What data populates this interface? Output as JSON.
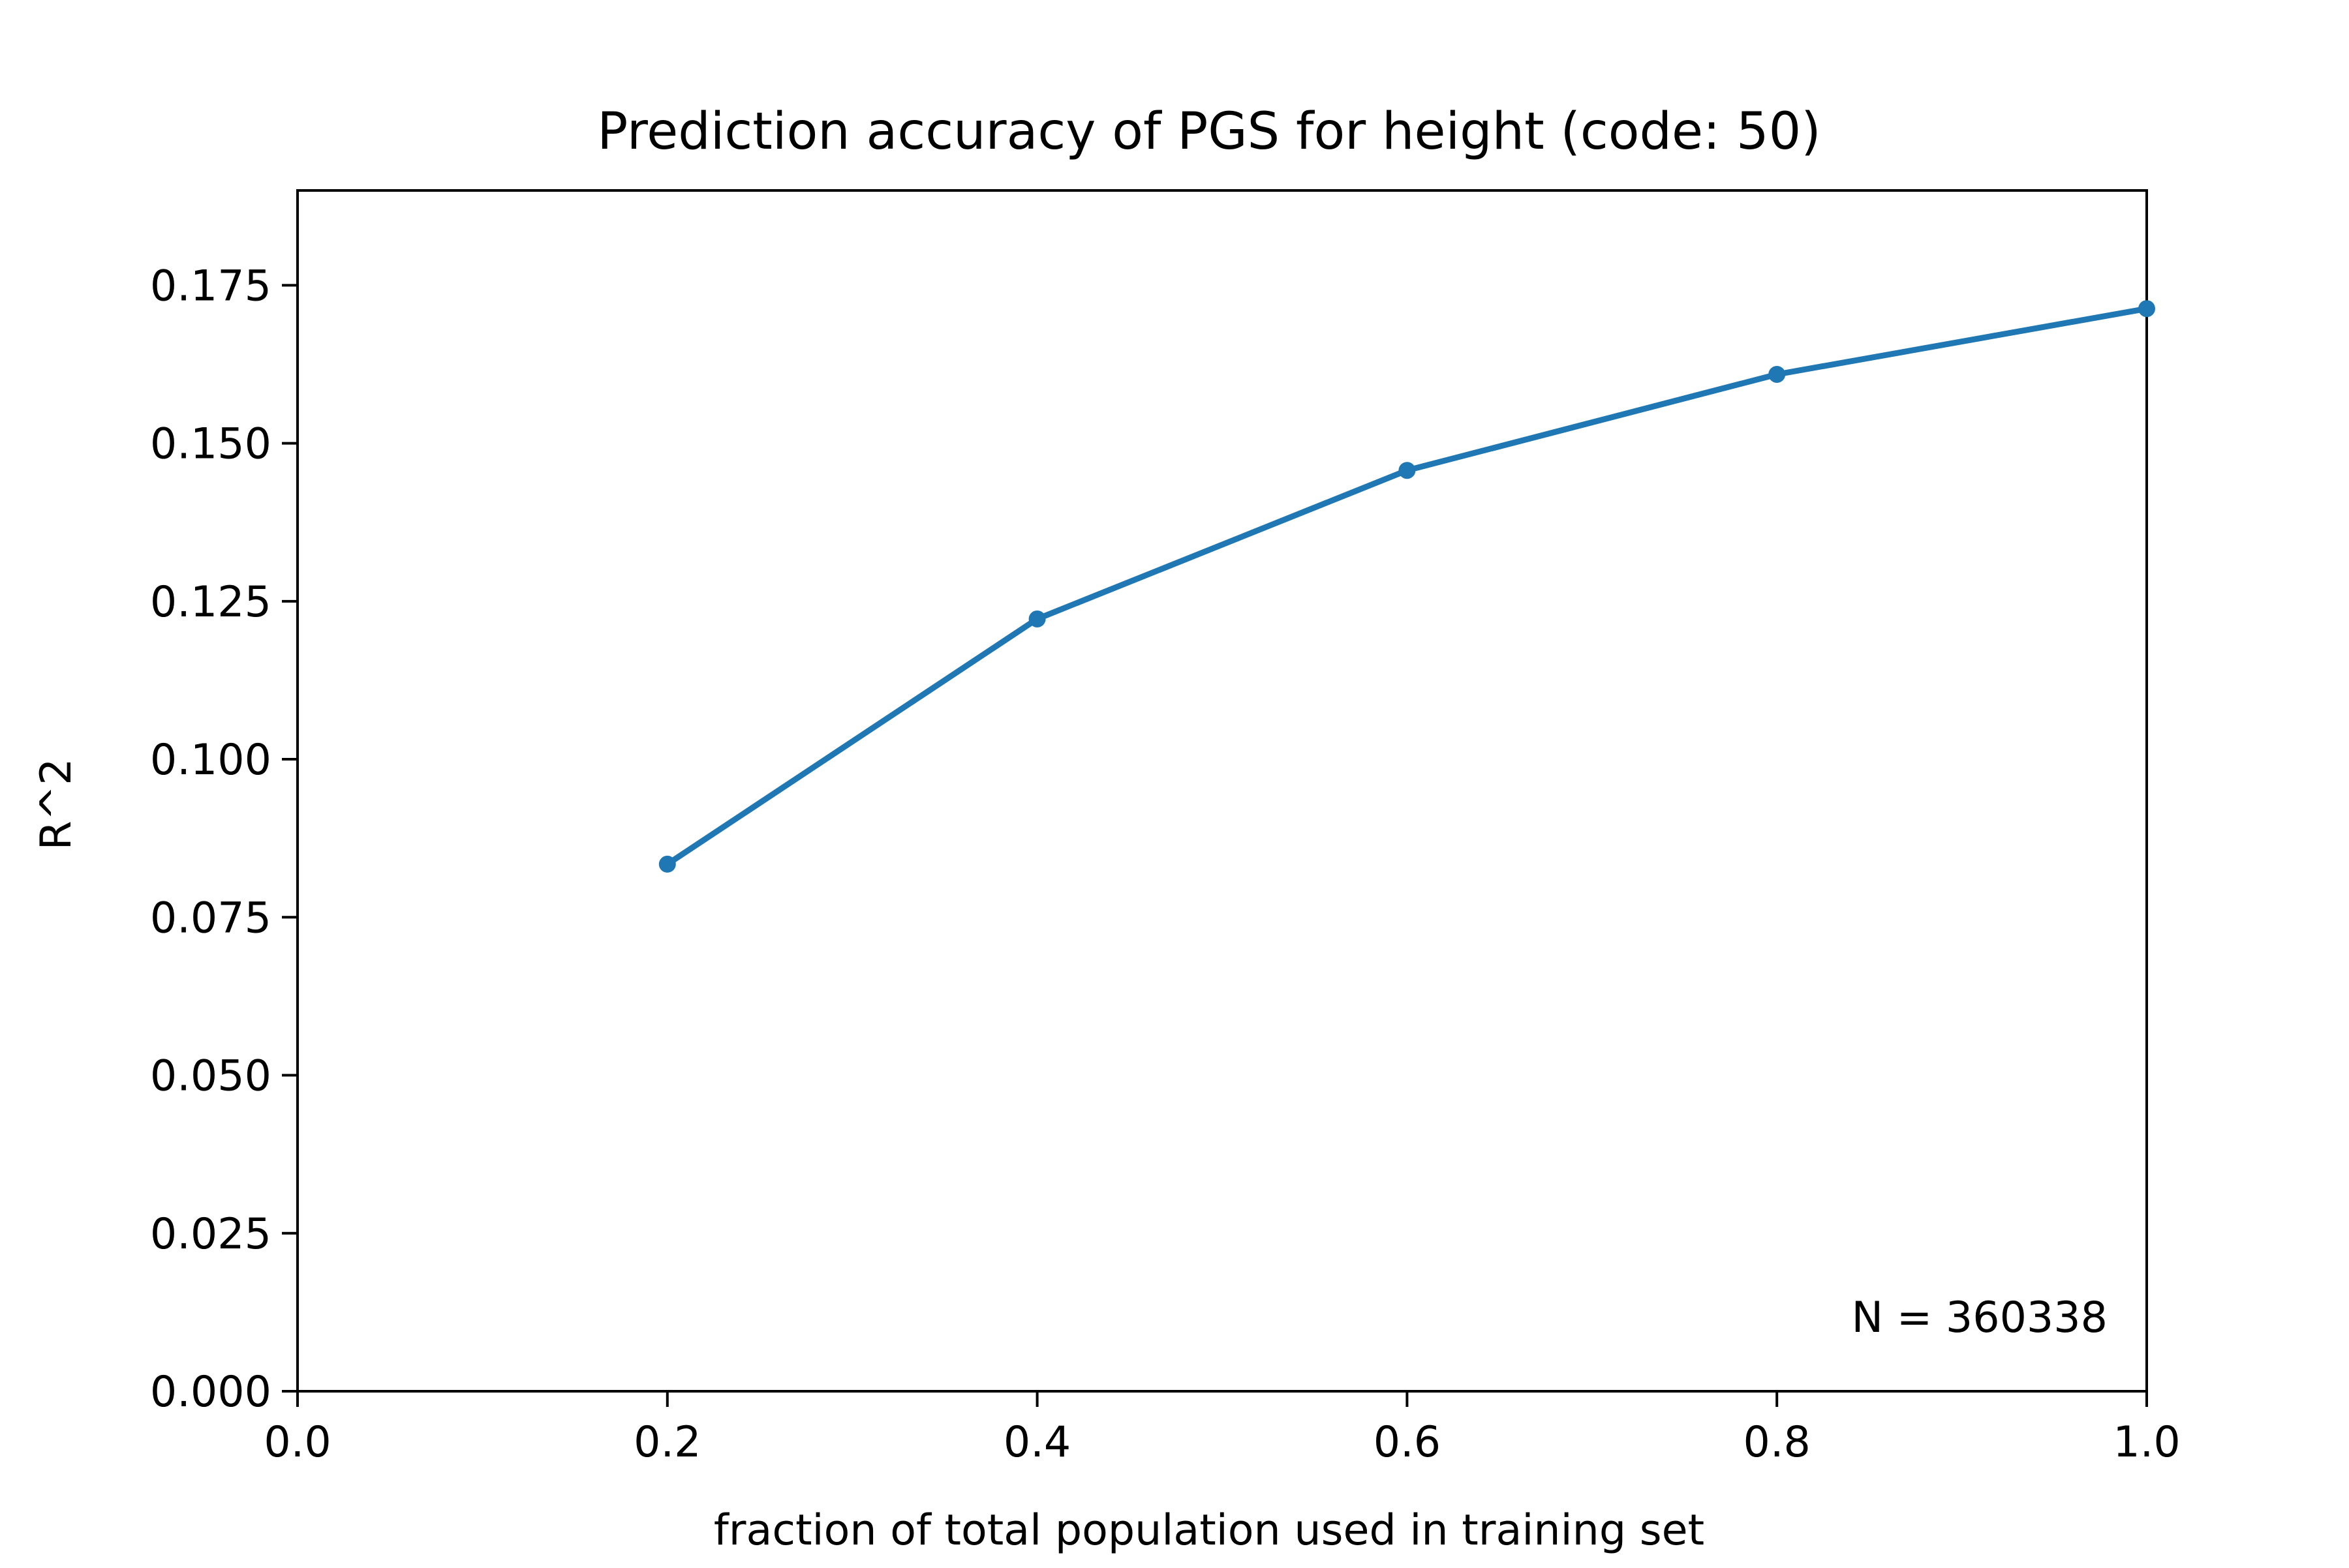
{
  "chart_data": {
    "type": "line",
    "title": "Prediction accuracy of PGS for height (code: 50)",
    "xlabel": "fraction of total population used in training set",
    "ylabel": "R^2",
    "xlim": [
      0.0,
      1.0
    ],
    "ylim": [
      0.0,
      0.19
    ],
    "x_ticks": [
      "0.0",
      "0.2",
      "0.4",
      "0.6",
      "0.8",
      "1.0"
    ],
    "y_ticks": [
      "0.000",
      "0.025",
      "0.050",
      "0.075",
      "0.100",
      "0.125",
      "0.150",
      "0.175"
    ],
    "series": [
      {
        "x": [
          0.2,
          0.4,
          0.6,
          0.8,
          1.0
        ],
        "y": [
          0.0834,
          0.1222,
          0.1457,
          0.1609,
          0.1713
        ],
        "color": "#1f77b4",
        "marker": "circle"
      }
    ],
    "annotation": "N = 360338",
    "annotation_position": "bottom-right",
    "grid": false,
    "legend": false
  }
}
